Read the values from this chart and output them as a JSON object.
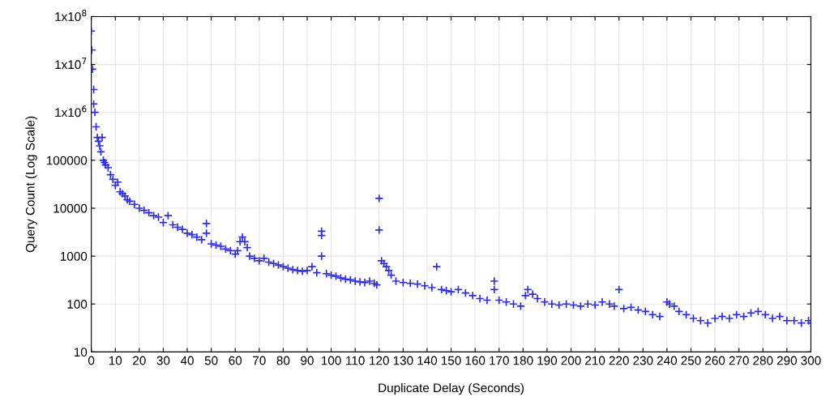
{
  "chart_data": {
    "type": "scatter",
    "xlabel": "Duplicate Delay (Seconds)",
    "ylabel": "Query Count (Log Scale)",
    "log": "y",
    "grid": true,
    "marker": "cross",
    "legend": false,
    "xlim": [
      0,
      300
    ],
    "xticks": [
      0,
      10,
      20,
      30,
      40,
      50,
      60,
      70,
      80,
      90,
      100,
      110,
      120,
      130,
      140,
      150,
      160,
      170,
      180,
      190,
      200,
      210,
      220,
      230,
      240,
      250,
      260,
      270,
      280,
      290,
      300
    ],
    "ylim": [
      10,
      100000000
    ],
    "yticks": [
      10,
      100,
      1000,
      10000,
      100000,
      {
        "value": 1000000,
        "label": "1x10$^{6}$"
      },
      {
        "value": 10000000,
        "label": "1x10$^{7}$"
      },
      {
        "value": 100000000,
        "label": "1x10$^{8}$"
      }
    ],
    "series": [
      {
        "color": "#2b2bf0",
        "x": [
          0,
          0.2,
          0.5,
          1,
          1,
          1.5,
          2,
          2.5,
          3,
          3.5,
          4,
          4.5,
          5,
          5.5,
          6,
          7,
          8,
          9,
          10,
          11,
          12,
          13,
          14,
          15,
          16,
          18,
          20,
          22,
          24,
          26,
          28,
          30,
          32,
          34,
          36,
          38,
          40,
          42,
          44,
          46,
          48,
          48,
          50,
          52,
          54,
          56,
          58,
          60,
          61,
          62,
          63,
          64,
          65,
          66,
          68,
          70,
          72,
          74,
          76,
          78,
          80,
          82,
          84,
          86,
          88,
          90,
          92,
          94,
          96,
          96,
          96,
          98,
          100,
          102,
          104,
          106,
          108,
          110,
          112,
          114,
          116,
          118,
          119,
          120,
          120,
          121,
          122,
          123,
          124,
          125,
          127,
          130,
          133,
          136,
          139,
          142,
          144,
          146,
          148,
          150,
          153,
          156,
          159,
          162,
          165,
          168,
          168,
          170,
          173,
          176,
          179,
          181,
          182,
          184,
          186,
          189,
          192,
          195,
          198,
          201,
          204,
          207,
          210,
          213,
          216,
          218,
          220,
          222,
          225,
          228,
          231,
          234,
          237,
          240,
          241,
          243,
          245,
          248,
          251,
          254,
          257,
          260,
          263,
          266,
          269,
          272,
          275,
          278,
          281,
          284,
          287,
          290,
          293,
          296,
          299,
          300
        ],
        "values": [
          50000000,
          20000000,
          8000000,
          3000000,
          1500000,
          1000000,
          500000,
          300000,
          250000,
          200000,
          150000,
          300000,
          100000,
          90000,
          80000,
          70000,
          50000,
          40000,
          30000,
          35000,
          22000,
          20000,
          18000,
          15000,
          14000,
          12000,
          10000,
          9000,
          8000,
          7000,
          6500,
          5000,
          7000,
          4500,
          4000,
          3600,
          3000,
          2800,
          2500,
          2200,
          4800,
          3000,
          1800,
          1700,
          1600,
          1400,
          1300,
          1100,
          1300,
          2000,
          2500,
          2000,
          1500,
          1000,
          900,
          800,
          900,
          750,
          700,
          650,
          600,
          560,
          520,
          500,
          480,
          500,
          600,
          450,
          3300,
          2700,
          1000,
          430,
          400,
          380,
          350,
          330,
          320,
          300,
          290,
          280,
          300,
          270,
          250,
          16000,
          3500,
          800,
          700,
          600,
          500,
          400,
          300,
          280,
          270,
          260,
          240,
          220,
          600,
          200,
          190,
          180,
          200,
          170,
          150,
          130,
          120,
          300,
          200,
          120,
          110,
          100,
          90,
          150,
          200,
          160,
          130,
          110,
          100,
          95,
          100,
          95,
          90,
          100,
          95,
          110,
          100,
          90,
          200,
          80,
          85,
          75,
          70,
          60,
          55,
          110,
          100,
          90,
          70,
          60,
          50,
          45,
          40,
          50,
          55,
          50,
          60,
          55,
          65,
          70,
          60,
          50,
          55,
          45,
          45,
          40,
          45,
          40
        ]
      }
    ]
  }
}
